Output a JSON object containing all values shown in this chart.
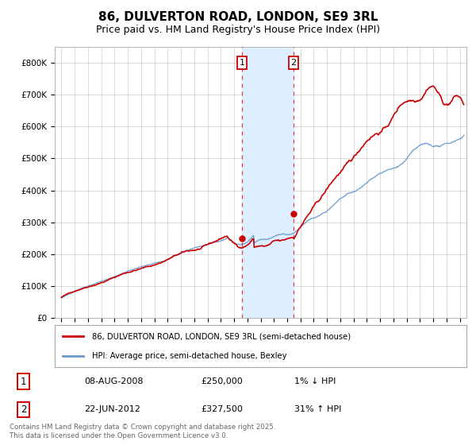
{
  "title": "86, DULVERTON ROAD, LONDON, SE9 3RL",
  "subtitle": "Price paid vs. HM Land Registry's House Price Index (HPI)",
  "ylim": [
    0,
    850000
  ],
  "yticks": [
    0,
    100000,
    200000,
    300000,
    400000,
    500000,
    600000,
    700000,
    800000
  ],
  "ytick_labels": [
    "£0",
    "£100K",
    "£200K",
    "£300K",
    "£400K",
    "£500K",
    "£600K",
    "£700K",
    "£800K"
  ],
  "line1_color": "#cc0000",
  "line2_color": "#6699cc",
  "transaction1_x": 2008.6,
  "transaction1_y": 250000,
  "transaction2_x": 2012.47,
  "transaction2_y": 327500,
  "vline1_x": 2008.6,
  "vline2_x": 2012.47,
  "shade_color": "#ddeeff",
  "legend_label1": "86, DULVERTON ROAD, LONDON, SE9 3RL (semi-detached house)",
  "legend_label2": "HPI: Average price, semi-detached house, Bexley",
  "table_rows": [
    {
      "num": "1",
      "date": "08-AUG-2008",
      "price": "£250,000",
      "hpi": "1% ↓ HPI"
    },
    {
      "num": "2",
      "date": "22-JUN-2012",
      "price": "£327,500",
      "hpi": "31% ↑ HPI"
    }
  ],
  "footer": "Contains HM Land Registry data © Crown copyright and database right 2025.\nThis data is licensed under the Open Government Licence v3.0.",
  "title_fontsize": 11,
  "subtitle_fontsize": 9,
  "background_color": "#ffffff",
  "grid_color": "#cccccc",
  "xlim_left": 1994.5,
  "xlim_right": 2025.5
}
